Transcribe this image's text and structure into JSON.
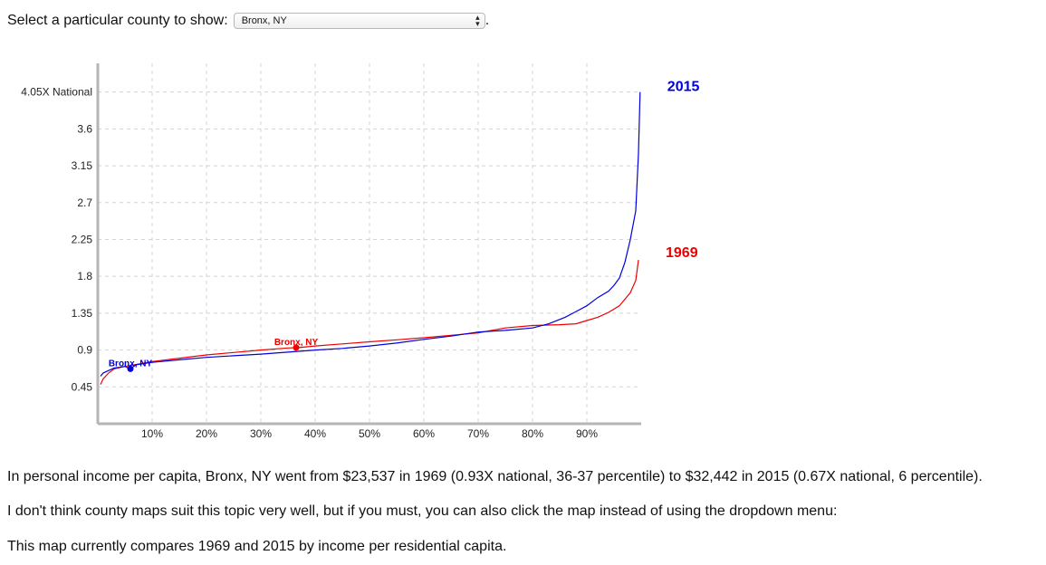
{
  "prompt": {
    "label": "Select a particular county to show:",
    "selected": "Bronx, NY",
    "suffix": "."
  },
  "chart_data": {
    "type": "line",
    "xlabel": "",
    "ylabel": "",
    "x_ticks": [
      "10%",
      "20%",
      "30%",
      "40%",
      "50%",
      "60%",
      "70%",
      "80%",
      "90%"
    ],
    "y_ticks": [
      "4.05X National",
      "3.6",
      "3.15",
      "2.7",
      "2.25",
      "1.8",
      "1.35",
      "0.9",
      "0.45"
    ],
    "xlim": [
      0,
      100
    ],
    "ylim": [
      0.0,
      4.4
    ],
    "grid": true,
    "series": [
      {
        "name": "2015",
        "color": "#0000dd",
        "points": [
          [
            0.5,
            0.58
          ],
          [
            1,
            0.62
          ],
          [
            3,
            0.68
          ],
          [
            5,
            0.7
          ],
          [
            6,
            0.67
          ],
          [
            7,
            0.72
          ],
          [
            10,
            0.75
          ],
          [
            15,
            0.78
          ],
          [
            20,
            0.81
          ],
          [
            25,
            0.83
          ],
          [
            30,
            0.85
          ],
          [
            35,
            0.875
          ],
          [
            40,
            0.9
          ],
          [
            45,
            0.92
          ],
          [
            50,
            0.95
          ],
          [
            55,
            0.985
          ],
          [
            60,
            1.03
          ],
          [
            65,
            1.07
          ],
          [
            70,
            1.12
          ],
          [
            75,
            1.14
          ],
          [
            80,
            1.17
          ],
          [
            83,
            1.22
          ],
          [
            86,
            1.3
          ],
          [
            88,
            1.37
          ],
          [
            90,
            1.44
          ],
          [
            92,
            1.54
          ],
          [
            94,
            1.62
          ],
          [
            95,
            1.69
          ],
          [
            96,
            1.78
          ],
          [
            97,
            1.97
          ],
          [
            98,
            2.25
          ],
          [
            99,
            2.6
          ],
          [
            99.5,
            3.3
          ],
          [
            99.8,
            4.05
          ]
        ]
      },
      {
        "name": "1969",
        "color": "#ee0000",
        "points": [
          [
            0.5,
            0.48
          ],
          [
            1,
            0.55
          ],
          [
            2,
            0.62
          ],
          [
            3,
            0.67
          ],
          [
            5,
            0.7
          ],
          [
            10,
            0.76
          ],
          [
            15,
            0.8
          ],
          [
            20,
            0.84
          ],
          [
            25,
            0.87
          ],
          [
            30,
            0.9
          ],
          [
            35,
            0.925
          ],
          [
            37,
            0.93
          ],
          [
            40,
            0.95
          ],
          [
            45,
            0.975
          ],
          [
            50,
            1.0
          ],
          [
            55,
            1.025
          ],
          [
            60,
            1.05
          ],
          [
            65,
            1.08
          ],
          [
            70,
            1.11
          ],
          [
            75,
            1.17
          ],
          [
            80,
            1.2
          ],
          [
            85,
            1.21
          ],
          [
            88,
            1.22
          ],
          [
            90,
            1.26
          ],
          [
            92,
            1.3
          ],
          [
            94,
            1.36
          ],
          [
            96,
            1.44
          ],
          [
            98,
            1.6
          ],
          [
            99,
            1.75
          ],
          [
            99.5,
            2.0
          ]
        ]
      }
    ],
    "markers": [
      {
        "series": "2015",
        "x": 6,
        "y": 0.67,
        "label": "Bronx, NY"
      },
      {
        "series": "1969",
        "x": 36.5,
        "y": 0.93,
        "label": "Bronx, NY"
      }
    ],
    "year_labels": [
      {
        "text": "2015",
        "color": "#0000dd"
      },
      {
        "text": "1969",
        "color": "#ee0000"
      }
    ]
  },
  "paragraphs": [
    "In personal income per capita, Bronx, NY went from $23,537 in 1969 (0.93X national, 36-37 percentile) to $32,442 in 2015 (0.67X national, 6 percentile).",
    "I don't think county maps suit this topic very well, but if you must, you can also click the map instead of using the dropdown menu:",
    "This map currently compares 1969 and 2015 by income per residential capita."
  ]
}
